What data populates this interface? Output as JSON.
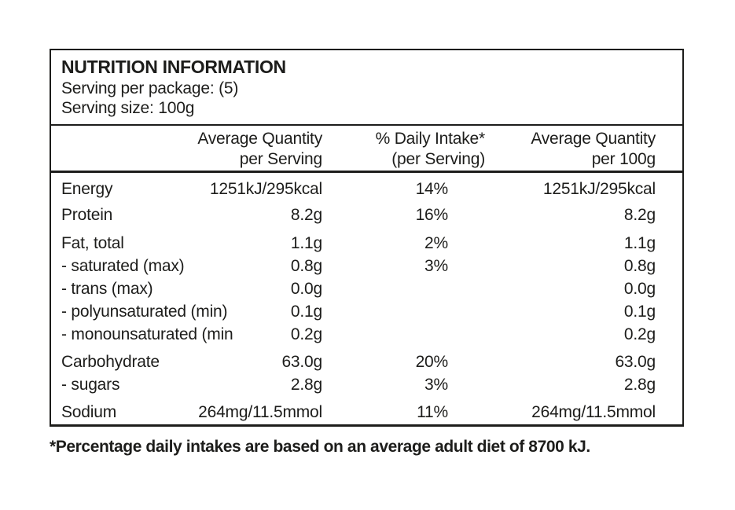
{
  "label": {
    "title": "NUTRITION INFORMATION",
    "serving_per_package": "Serving per package: (5)",
    "serving_size": "Serving size: 100g",
    "columns": {
      "per_serving_line1": "Average Quantity",
      "per_serving_line2": "per Serving",
      "daily_intake_line1": "% Daily Intake*",
      "daily_intake_line2": "(per Serving)",
      "per_100g_line1": "Average Quantity",
      "per_100g_line2": "per 100g"
    },
    "rows": [
      {
        "nutrient": "Energy",
        "per_serving": "1251kJ/295kcal",
        "daily_intake": "14%",
        "per_100g": "1251kJ/295kcal"
      },
      {
        "nutrient": "Protein",
        "per_serving": "8.2g",
        "daily_intake": "16%",
        "per_100g": "8.2g"
      },
      {
        "nutrient": "Fat, total",
        "per_serving": "1.1g",
        "daily_intake": "2%",
        "per_100g": "1.1g"
      },
      {
        "nutrient": "- saturated (max)",
        "per_serving": "0.8g",
        "daily_intake": "3%",
        "per_100g": "0.8g"
      },
      {
        "nutrient": "- trans (max)",
        "per_serving": "0.0g",
        "daily_intake": "",
        "per_100g": "0.0g"
      },
      {
        "nutrient": "- polyunsaturated (min)",
        "per_serving": "0.1g",
        "daily_intake": "",
        "per_100g": "0.1g"
      },
      {
        "nutrient": "- monounsaturated (min",
        "per_serving": "0.2g",
        "daily_intake": "",
        "per_100g": "0.2g"
      },
      {
        "nutrient": "Carbohydrate",
        "per_serving": "63.0g",
        "daily_intake": "20%",
        "per_100g": "63.0g"
      },
      {
        "nutrient": "- sugars",
        "per_serving": "2.8g",
        "daily_intake": "3%",
        "per_100g": "2.8g"
      },
      {
        "nutrient": "Sodium",
        "per_serving": "264mg/11.5mmol",
        "daily_intake": "11%",
        "per_100g": "264mg/11.5mmol"
      }
    ],
    "footnote": "*Percentage daily intakes are based on an average adult diet of 8700 kJ."
  },
  "colors": {
    "text": "#1d1d1b",
    "border": "#1d1d1b",
    "background": "#ffffff"
  }
}
